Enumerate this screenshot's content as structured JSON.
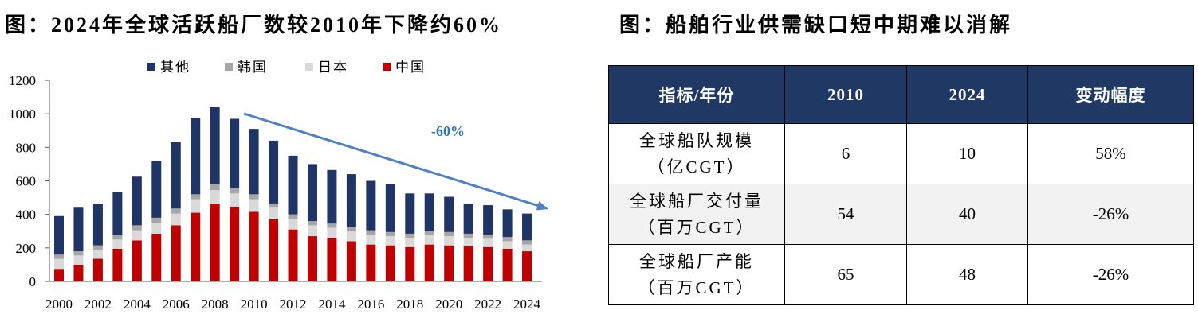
{
  "chart_data": {
    "type": "bar",
    "stacked": true,
    "title": "图：2024年全球活跃船厂数较2010年下降约60%",
    "x": [
      2000,
      2001,
      2002,
      2003,
      2004,
      2005,
      2006,
      2007,
      2008,
      2009,
      2010,
      2011,
      2012,
      2013,
      2014,
      2015,
      2016,
      2017,
      2018,
      2019,
      2020,
      2021,
      2022,
      2023,
      2024
    ],
    "xticks": [
      2000,
      2002,
      2004,
      2006,
      2008,
      2010,
      2012,
      2014,
      2016,
      2018,
      2020,
      2022,
      2024
    ],
    "ylim": [
      0,
      1200
    ],
    "yticks": [
      0,
      200,
      400,
      600,
      800,
      1000,
      1200
    ],
    "grid": false,
    "legend": "top",
    "series": [
      {
        "name": "中国",
        "color": "#c00000",
        "values": [
          75,
          100,
          135,
          195,
          245,
          285,
          335,
          410,
          465,
          445,
          415,
          370,
          310,
          270,
          260,
          240,
          220,
          215,
          205,
          220,
          215,
          210,
          205,
          195,
          180
        ]
      },
      {
        "name": "日本",
        "color": "#d9d9d9",
        "values": [
          60,
          55,
          55,
          55,
          60,
          65,
          70,
          80,
          80,
          80,
          75,
          70,
          65,
          65,
          60,
          60,
          60,
          55,
          55,
          55,
          55,
          50,
          50,
          45,
          40
        ]
      },
      {
        "name": "韩国",
        "color": "#a6a6a6",
        "values": [
          25,
          25,
          25,
          25,
          30,
          30,
          30,
          30,
          35,
          30,
          30,
          25,
          25,
          25,
          25,
          25,
          25,
          25,
          25,
          25,
          25,
          25,
          25,
          25,
          25
        ]
      },
      {
        "name": "其他",
        "color": "#1f3566",
        "values": [
          230,
          260,
          245,
          260,
          290,
          340,
          395,
          455,
          460,
          415,
          390,
          375,
          350,
          340,
          320,
          315,
          295,
          285,
          240,
          225,
          210,
          180,
          175,
          165,
          160
        ]
      }
    ],
    "annotation": {
      "text": "-60%",
      "color": "#2e75b6"
    }
  },
  "table": {
    "title": "图：船舶行业供需缺口短中期难以消解",
    "headers": [
      "指标/年份",
      "2010",
      "2024",
      "变动幅度"
    ],
    "rows": [
      {
        "label": [
          "全球船队规模",
          "（亿CGT）"
        ],
        "values": [
          "6",
          "10",
          "58%"
        ]
      },
      {
        "label": [
          "全球船厂交付量",
          "（百万CGT）"
        ],
        "values": [
          "54",
          "40",
          "-26%"
        ]
      },
      {
        "label": [
          "全球船厂产能",
          "（百万CGT）"
        ],
        "values": [
          "65",
          "48",
          "-26%"
        ]
      }
    ],
    "header_color": "#1f3864",
    "stripe_color": "#f2f2f2"
  }
}
